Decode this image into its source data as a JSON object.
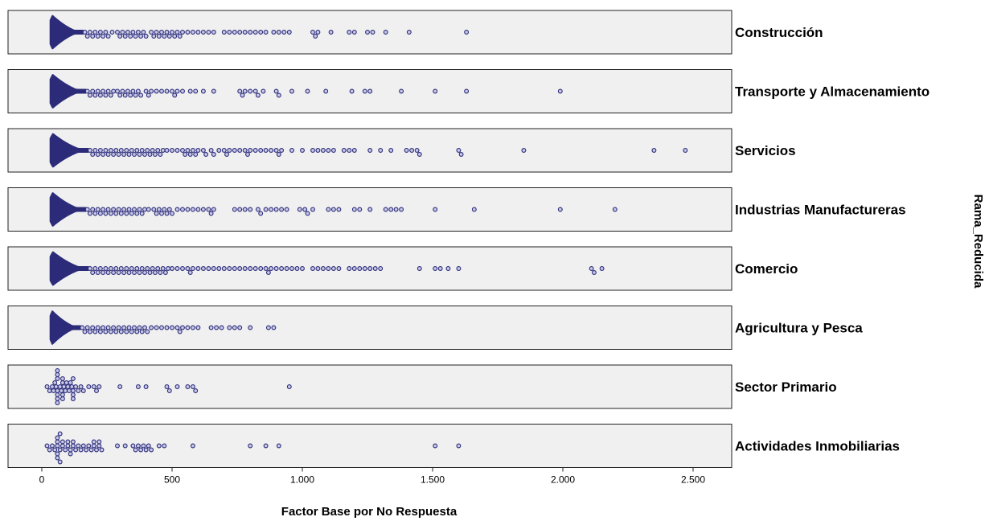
{
  "chart_data": {
    "type": "scatter",
    "subtype": "dot-plot-stacked-by-panel",
    "xlabel": "Factor Base por No Respuesta",
    "ylabel": "Rama_Reducida",
    "xlim": [
      0,
      2650
    ],
    "x_ticks": [
      0,
      500,
      1000,
      1500,
      2000,
      2500
    ],
    "x_tick_labels": [
      "0",
      "500",
      "1.000",
      "1.500",
      "2.000",
      "2.500"
    ],
    "grid": false,
    "point_color": "#2b2b7a",
    "point_fill": "#c8c8e6",
    "panel_background": "#f0f0f0",
    "series": [
      {
        "name": "Construcción",
        "dense_range": [
          30,
          160
        ],
        "x": [
          165,
          175,
          185,
          195,
          205,
          215,
          225,
          235,
          245,
          255,
          270,
          290,
          300,
          310,
          320,
          330,
          340,
          350,
          360,
          370,
          380,
          390,
          400,
          420,
          430,
          440,
          450,
          460,
          470,
          480,
          490,
          500,
          510,
          520,
          530,
          540,
          560,
          580,
          600,
          620,
          640,
          660,
          700,
          720,
          740,
          760,
          780,
          800,
          820,
          840,
          860,
          890,
          910,
          930,
          950,
          1040,
          1050,
          1060,
          1110,
          1180,
          1200,
          1250,
          1270,
          1320,
          1410,
          1630
        ]
      },
      {
        "name": "Transporte y Almacenamiento",
        "dense_range": [
          30,
          170
        ],
        "x": [
          175,
          185,
          195,
          205,
          215,
          225,
          235,
          245,
          255,
          265,
          275,
          290,
          300,
          310,
          320,
          330,
          340,
          350,
          360,
          370,
          380,
          400,
          410,
          420,
          440,
          460,
          480,
          500,
          510,
          520,
          540,
          570,
          590,
          620,
          660,
          760,
          770,
          780,
          800,
          820,
          830,
          850,
          900,
          910,
          960,
          1020,
          1090,
          1190,
          1240,
          1260,
          1380,
          1510,
          1630,
          1990
        ]
      },
      {
        "name": "Servicios",
        "dense_range": [
          30,
          180
        ],
        "x": [
          185,
          195,
          205,
          215,
          225,
          235,
          245,
          255,
          265,
          275,
          285,
          295,
          305,
          315,
          325,
          335,
          345,
          355,
          365,
          375,
          385,
          395,
          405,
          415,
          425,
          435,
          445,
          455,
          465,
          480,
          500,
          520,
          540,
          550,
          560,
          570,
          580,
          590,
          600,
          620,
          630,
          650,
          660,
          680,
          700,
          710,
          720,
          740,
          760,
          780,
          790,
          800,
          820,
          840,
          860,
          880,
          900,
          910,
          920,
          960,
          1000,
          1040,
          1060,
          1080,
          1100,
          1120,
          1160,
          1180,
          1200,
          1260,
          1300,
          1340,
          1400,
          1420,
          1440,
          1450,
          1600,
          1610,
          1850,
          2350,
          2470
        ]
      },
      {
        "name": "Industrias Manufactureras",
        "dense_range": [
          30,
          170
        ],
        "x": [
          175,
          185,
          195,
          205,
          215,
          225,
          235,
          245,
          255,
          265,
          275,
          285,
          295,
          305,
          315,
          325,
          335,
          345,
          355,
          365,
          375,
          385,
          395,
          410,
          430,
          440,
          450,
          460,
          470,
          480,
          490,
          500,
          520,
          540,
          560,
          580,
          600,
          620,
          640,
          650,
          660,
          740,
          760,
          780,
          800,
          830,
          840,
          860,
          880,
          900,
          920,
          940,
          990,
          1010,
          1020,
          1040,
          1100,
          1120,
          1140,
          1200,
          1220,
          1260,
          1320,
          1340,
          1360,
          1380,
          1510,
          1660,
          1990,
          2200
        ]
      },
      {
        "name": "Comercio",
        "dense_range": [
          30,
          180
        ],
        "x": [
          185,
          195,
          205,
          215,
          225,
          235,
          245,
          255,
          265,
          275,
          285,
          295,
          305,
          315,
          325,
          335,
          345,
          355,
          365,
          375,
          385,
          395,
          405,
          415,
          425,
          435,
          445,
          455,
          465,
          475,
          485,
          500,
          520,
          540,
          560,
          570,
          580,
          600,
          620,
          640,
          660,
          680,
          700,
          720,
          740,
          760,
          780,
          800,
          820,
          840,
          860,
          870,
          880,
          900,
          920,
          940,
          960,
          980,
          1000,
          1040,
          1060,
          1080,
          1100,
          1120,
          1140,
          1180,
          1200,
          1220,
          1240,
          1260,
          1280,
          1300,
          1450,
          1510,
          1530,
          1560,
          1600,
          2110,
          2120,
          2150
        ]
      },
      {
        "name": "Agricultura y Pesca",
        "dense_range": [
          30,
          150
        ],
        "x": [
          155,
          165,
          175,
          185,
          195,
          205,
          215,
          225,
          235,
          245,
          255,
          265,
          275,
          285,
          295,
          305,
          315,
          325,
          335,
          345,
          355,
          365,
          375,
          385,
          395,
          405,
          420,
          440,
          460,
          480,
          500,
          520,
          530,
          540,
          560,
          580,
          600,
          650,
          670,
          690,
          720,
          740,
          760,
          800,
          870,
          890
        ]
      },
      {
        "name": "Sector Primario",
        "dense_range": null,
        "x": [
          20,
          30,
          40,
          45,
          50,
          55,
          60,
          60,
          60,
          60,
          60,
          60,
          60,
          70,
          75,
          80,
          80,
          80,
          80,
          85,
          90,
          95,
          100,
          105,
          110,
          115,
          120,
          120,
          120,
          120,
          130,
          140,
          150,
          160,
          180,
          200,
          210,
          220,
          300,
          370,
          400,
          480,
          490,
          520,
          560,
          580,
          590,
          950
        ]
      },
      {
        "name": "Actividades Inmobiliarias",
        "dense_range": null,
        "x": [
          20,
          30,
          40,
          50,
          60,
          60,
          60,
          60,
          60,
          70,
          70,
          70,
          80,
          80,
          90,
          100,
          100,
          110,
          110,
          120,
          120,
          130,
          140,
          150,
          160,
          170,
          180,
          190,
          200,
          200,
          210,
          220,
          220,
          230,
          290,
          320,
          350,
          360,
          370,
          380,
          390,
          400,
          410,
          420,
          450,
          470,
          580,
          800,
          860,
          910,
          1510,
          1600
        ]
      }
    ]
  }
}
